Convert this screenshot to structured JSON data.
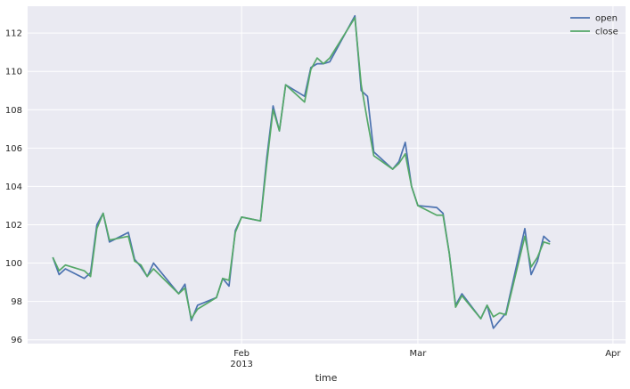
{
  "chart_data": {
    "type": "line",
    "title": "",
    "xlabel": "time",
    "ylabel": "",
    "grid": true,
    "legend_position": "top-right",
    "background_color": "#EAEAF2",
    "x": [
      "2013-01-02",
      "2013-01-03",
      "2013-01-04",
      "2013-01-07",
      "2013-01-08",
      "2013-01-09",
      "2013-01-10",
      "2013-01-11",
      "2013-01-14",
      "2013-01-15",
      "2013-01-16",
      "2013-01-17",
      "2013-01-18",
      "2013-01-22",
      "2013-01-23",
      "2013-01-24",
      "2013-01-25",
      "2013-01-28",
      "2013-01-29",
      "2013-01-30",
      "2013-01-31",
      "2013-02-01",
      "2013-02-04",
      "2013-02-05",
      "2013-02-06",
      "2013-02-07",
      "2013-02-08",
      "2013-02-11",
      "2013-02-12",
      "2013-02-13",
      "2013-02-14",
      "2013-02-15",
      "2013-02-19",
      "2013-02-20",
      "2013-02-21",
      "2013-02-22",
      "2013-02-25",
      "2013-02-26",
      "2013-02-27",
      "2013-02-28",
      "2013-03-01",
      "2013-03-04",
      "2013-03-05",
      "2013-03-06",
      "2013-03-07",
      "2013-03-08",
      "2013-03-11",
      "2013-03-12",
      "2013-03-13",
      "2013-03-14",
      "2013-03-15",
      "2013-03-18",
      "2013-03-19",
      "2013-03-20",
      "2013-03-21",
      "2013-03-22",
      "2013-03-25",
      "2013-03-26",
      "2013-03-27",
      "2013-03-28"
    ],
    "x_ticks": [
      {
        "date": "2013-02-01",
        "label": "Feb",
        "sublabel": "2013"
      },
      {
        "date": "2013-03-01",
        "label": "Mar",
        "sublabel": ""
      },
      {
        "date": "2013-04-01",
        "label": "Apr",
        "sublabel": ""
      }
    ],
    "xlim": [
      "2012-12-29",
      "2013-04-03"
    ],
    "y_ticks": [
      96,
      98,
      100,
      102,
      104,
      106,
      108,
      110,
      112
    ],
    "ylim": [
      95.8,
      113.4
    ],
    "series": [
      {
        "name": "open",
        "color": "#4C72B0",
        "values": [
          100.3,
          99.4,
          99.7,
          99.2,
          99.5,
          102.0,
          102.6,
          101.1,
          101.6,
          100.2,
          99.8,
          99.3,
          100.0,
          98.4,
          98.9,
          97.0,
          97.8,
          98.2,
          99.2,
          98.8,
          101.7,
          102.4,
          102.2,
          105.5,
          108.2,
          106.9,
          109.3,
          108.7,
          110.2,
          110.4,
          110.4,
          110.5,
          112.9,
          109.0,
          108.7,
          105.8,
          104.9,
          105.3,
          106.3,
          104.0,
          103.0,
          102.9,
          102.6,
          100.5,
          97.8,
          98.4,
          97.1,
          97.8,
          96.6,
          97.0,
          97.4,
          101.8,
          99.4,
          100.1,
          101.4,
          101.1,
          null,
          null,
          null,
          null
        ]
      },
      {
        "name": "close",
        "color": "#55A868",
        "values": [
          100.3,
          99.6,
          99.9,
          99.6,
          99.3,
          101.8,
          102.6,
          101.2,
          101.4,
          100.1,
          99.9,
          99.3,
          99.7,
          98.4,
          98.7,
          97.1,
          97.6,
          98.2,
          99.2,
          99.1,
          101.6,
          102.4,
          102.2,
          105.2,
          108.0,
          106.9,
          109.3,
          108.4,
          110.1,
          110.7,
          110.4,
          110.7,
          112.8,
          109.3,
          107.4,
          105.6,
          104.9,
          105.2,
          105.7,
          104.0,
          103.0,
          102.5,
          102.5,
          100.5,
          97.7,
          98.3,
          97.1,
          97.8,
          97.2,
          97.4,
          97.3,
          101.4,
          99.8,
          100.3,
          101.1,
          101.0,
          null,
          null,
          null,
          null
        ]
      }
    ]
  }
}
